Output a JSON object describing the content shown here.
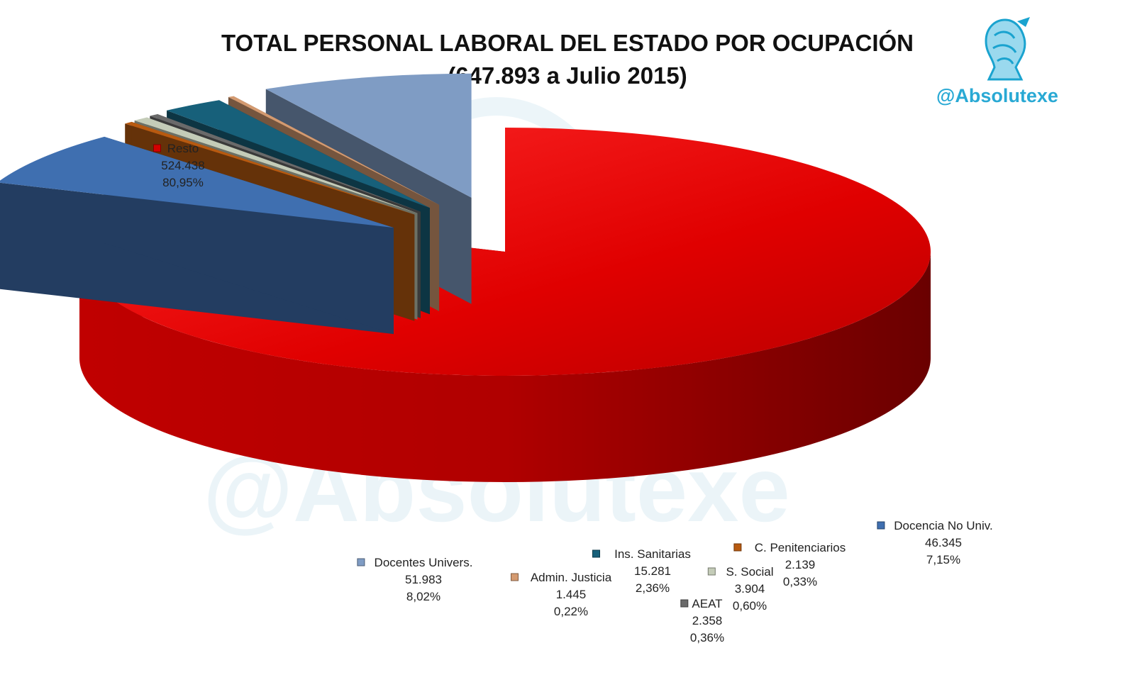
{
  "title_line1": "TOTAL PERSONAL LABORAL DEL ESTADO POR OCUPACIÓN",
  "title_line2": "(647.893 a Julio 2015)",
  "brand": "@Absolutexe",
  "watermark": "@Absolutexe",
  "chart_data": {
    "type": "pie",
    "title": "TOTAL PERSONAL LABORAL DEL ESTADO POR OCUPACIÓN (647.893 a Julio 2015)",
    "total": 647893,
    "slices": [
      {
        "name": "Resto",
        "value": 524438,
        "value_label": "524.438",
        "percent_label": "80,95%",
        "color": "#d40000"
      },
      {
        "name": "Docencia No Univ.",
        "value": 46345,
        "value_label": "46.345",
        "percent_label": "7,15%",
        "color": "#3f6fb0"
      },
      {
        "name": "C. Penitenciarios",
        "value": 2139,
        "value_label": "2.139",
        "percent_label": "0,33%",
        "color": "#b85a10"
      },
      {
        "name": "S. Social",
        "value": 3904,
        "value_label": "3.904",
        "percent_label": "0,60%",
        "color": "#c4ccb8"
      },
      {
        "name": "AEAT",
        "value": 2358,
        "value_label": "2.358",
        "percent_label": "0,36%",
        "color": "#6a6a6a"
      },
      {
        "name": "Ins. Sanitarias",
        "value": 15281,
        "value_label": "15.281",
        "percent_label": "2,36%",
        "color": "#17607a"
      },
      {
        "name": "Admin. Justicia",
        "value": 1445,
        "value_label": "1.445",
        "percent_label": "0,22%",
        "color": "#d49a70"
      },
      {
        "name": "Docentes Univers.",
        "value": 51983,
        "value_label": "51.983",
        "percent_label": "8,02%",
        "color": "#7f9cc4"
      }
    ]
  }
}
